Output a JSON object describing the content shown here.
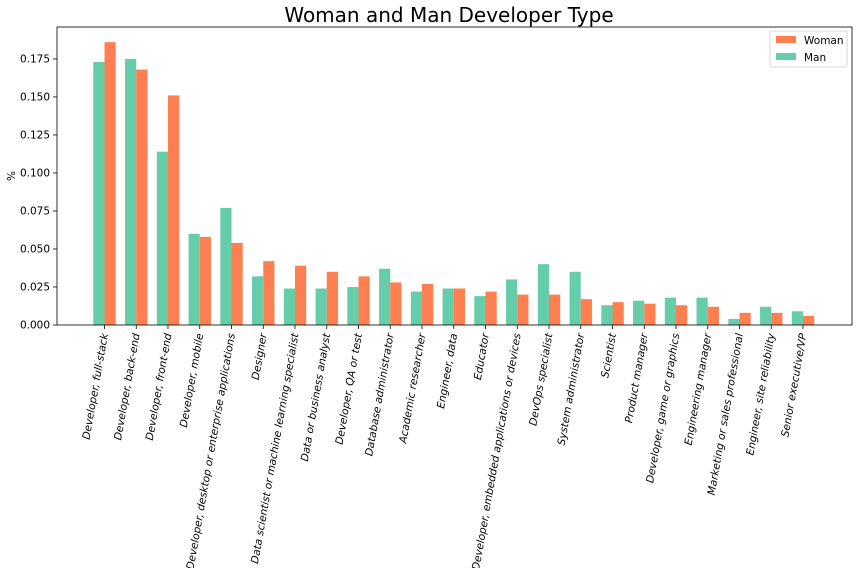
{
  "chart_data": {
    "type": "bar",
    "title": "Woman and Man Developer Type",
    "xlabel": "",
    "ylabel": "%",
    "ylim": [
      0,
      0.196
    ],
    "yticks": [
      "0.000",
      "0.025",
      "0.050",
      "0.075",
      "0.100",
      "0.125",
      "0.150",
      "0.175"
    ],
    "grid": false,
    "legend_position": "top-right",
    "categories": [
      "Developer, full-stack",
      "Developer, back-end",
      "Developer, front-end",
      "Developer, mobile",
      "Developer, desktop or enterprise applications",
      "Designer",
      "Data scientist or machine learning specialist",
      "Data or business analyst",
      "Developer, QA or test",
      "Database administrator",
      "Academic researcher",
      "Engineer, data",
      "Educator",
      "Developer, embedded applications or devices",
      "DevOps specialist",
      "System administrator",
      "Scientist",
      "Product manager",
      "Developer, game or graphics",
      "Engineering manager",
      "Marketing or sales professional",
      "Engineer, site reliability",
      "Senior executive/VP"
    ],
    "series": [
      {
        "name": "Man",
        "color": "#66cdaa",
        "values": [
          0.173,
          0.175,
          0.114,
          0.06,
          0.077,
          0.032,
          0.024,
          0.024,
          0.025,
          0.037,
          0.022,
          0.024,
          0.019,
          0.03,
          0.04,
          0.035,
          0.013,
          0.016,
          0.018,
          0.018,
          0.004,
          0.012,
          0.009
        ]
      },
      {
        "name": "Woman",
        "color": "#ff7f50",
        "values": [
          0.186,
          0.168,
          0.151,
          0.058,
          0.054,
          0.042,
          0.039,
          0.035,
          0.032,
          0.028,
          0.027,
          0.024,
          0.022,
          0.02,
          0.02,
          0.017,
          0.015,
          0.014,
          0.013,
          0.012,
          0.008,
          0.008,
          0.006
        ]
      }
    ],
    "legend": [
      "Woman",
      "Man"
    ]
  }
}
